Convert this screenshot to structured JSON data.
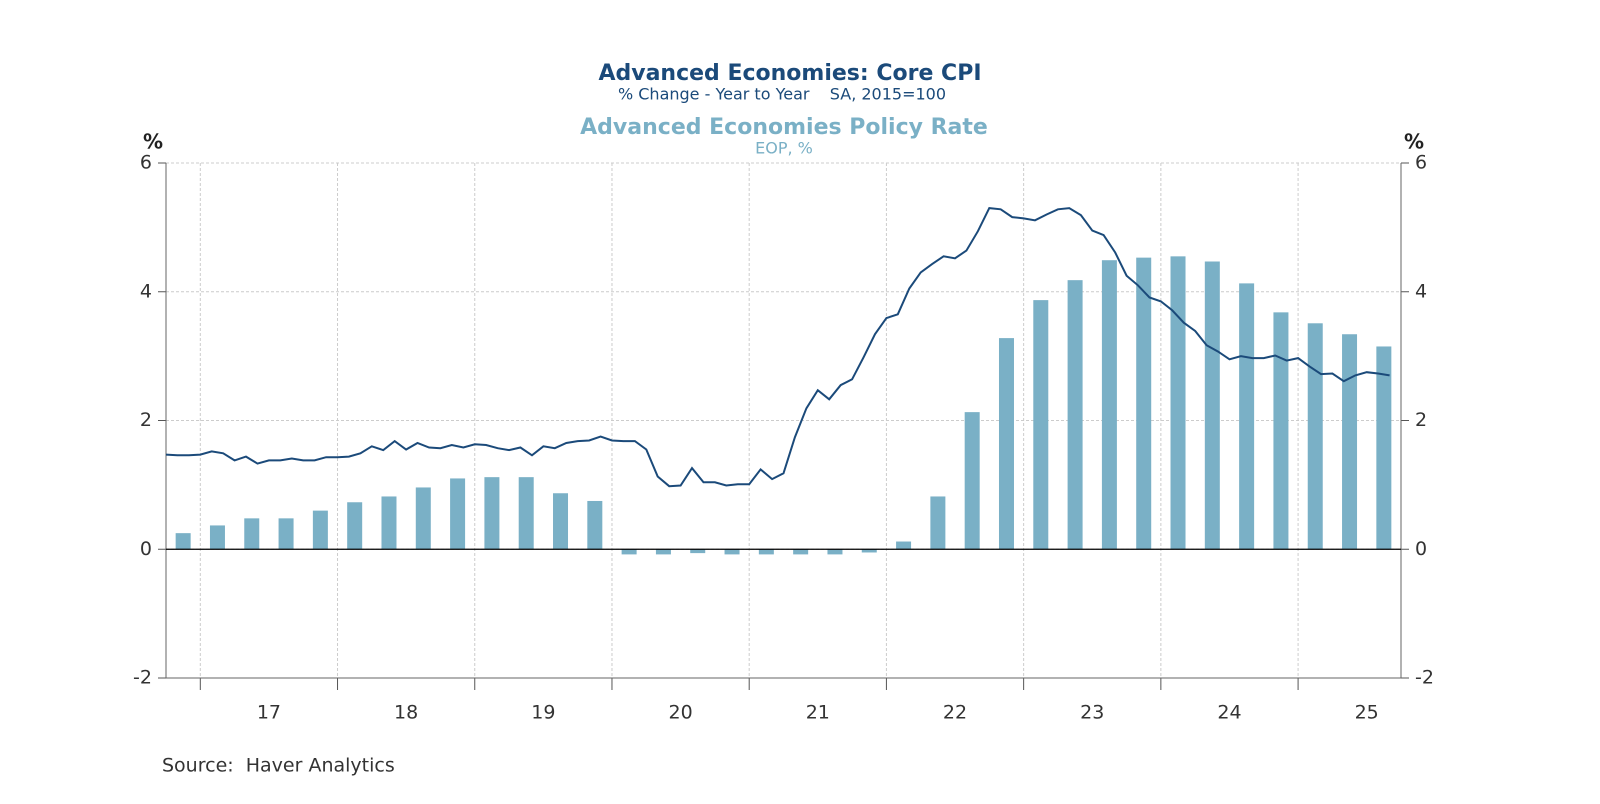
{
  "chart_data": {
    "type": "combo",
    "series": [
      {
        "name": "Advanced Economies: Core CPI",
        "subtitle": "% Change - Year to Year    SA, 2015=100",
        "type": "line",
        "color": "#1b4a7a",
        "x": [
          2016.75,
          2016.833,
          2016.917,
          2017,
          2017.083,
          2017.167,
          2017.25,
          2017.333,
          2017.417,
          2017.5,
          2017.583,
          2017.667,
          2017.75,
          2017.833,
          2017.917,
          2018,
          2018.083,
          2018.167,
          2018.25,
          2018.333,
          2018.417,
          2018.5,
          2018.583,
          2018.667,
          2018.75,
          2018.833,
          2018.917,
          2019,
          2019.083,
          2019.167,
          2019.25,
          2019.333,
          2019.417,
          2019.5,
          2019.583,
          2019.667,
          2019.75,
          2019.833,
          2019.917,
          2020,
          2020.083,
          2020.167,
          2020.25,
          2020.333,
          2020.417,
          2020.5,
          2020.583,
          2020.667,
          2020.75,
          2020.833,
          2020.917,
          2021,
          2021.083,
          2021.167,
          2021.25,
          2021.333,
          2021.417,
          2021.5,
          2021.583,
          2021.667,
          2021.75,
          2021.833,
          2021.917,
          2022,
          2022.083,
          2022.167,
          2022.25,
          2022.333,
          2022.417,
          2022.5,
          2022.583,
          2022.667,
          2022.75,
          2022.833,
          2022.917,
          2023,
          2023.083,
          2023.167,
          2023.25,
          2023.333,
          2023.417,
          2023.5,
          2023.583,
          2023.667,
          2023.75,
          2023.833,
          2023.917,
          2024,
          2024.083,
          2024.167,
          2024.25,
          2024.333,
          2024.417,
          2024.5,
          2024.583,
          2024.667,
          2024.75,
          2024.833,
          2024.917,
          2025,
          2025.083,
          2025.167,
          2025.25,
          2025.333,
          2025.417,
          2025.5,
          2025.583,
          2025.667
        ],
        "values": [
          1.47,
          1.46,
          1.46,
          1.47,
          1.52,
          1.49,
          1.38,
          1.44,
          1.33,
          1.38,
          1.38,
          1.41,
          1.38,
          1.38,
          1.43,
          1.43,
          1.44,
          1.49,
          1.6,
          1.54,
          1.68,
          1.55,
          1.65,
          1.58,
          1.57,
          1.62,
          1.58,
          1.63,
          1.62,
          1.57,
          1.54,
          1.58,
          1.46,
          1.6,
          1.57,
          1.65,
          1.68,
          1.69,
          1.75,
          1.69,
          1.68,
          1.68,
          1.55,
          1.13,
          0.98,
          0.99,
          1.26,
          1.04,
          1.04,
          0.99,
          1.01,
          1.01,
          1.24,
          1.09,
          1.18,
          1.74,
          2.19,
          2.47,
          2.33,
          2.55,
          2.64,
          2.98,
          3.34,
          3.59,
          3.65,
          4.05,
          4.3,
          4.43,
          4.55,
          4.52,
          4.64,
          4.94,
          5.3,
          5.28,
          5.16,
          5.14,
          5.11,
          5.2,
          5.28,
          5.3,
          5.19,
          4.95,
          4.88,
          4.61,
          4.25,
          4.1,
          3.91,
          3.85,
          3.71,
          3.52,
          3.39,
          3.17,
          3.07,
          2.95,
          3.0,
          2.97,
          2.97,
          3.01,
          2.93,
          2.97,
          2.84,
          2.72,
          2.73,
          2.61,
          2.7,
          2.75,
          2.73,
          2.7
        ]
      },
      {
        "name": "Advanced Economies Policy Rate",
        "subtitle": "EOP, %",
        "type": "bar",
        "color": "#7ab0c6",
        "axis": "y2",
        "x": [
          2016.875,
          2017.125,
          2017.375,
          2017.625,
          2017.875,
          2018.125,
          2018.375,
          2018.625,
          2018.875,
          2019.125,
          2019.375,
          2019.625,
          2019.875,
          2020.125,
          2020.375,
          2020.625,
          2020.875,
          2021.125,
          2021.375,
          2021.625,
          2021.875,
          2022.125,
          2022.375,
          2022.625,
          2022.875,
          2023.125,
          2023.375,
          2023.625,
          2023.875,
          2024.125,
          2024.375,
          2024.625,
          2024.875,
          2025.125,
          2025.375,
          2025.625
        ],
        "values": [
          0.25,
          0.37,
          0.48,
          0.48,
          0.6,
          0.73,
          0.82,
          0.96,
          1.1,
          1.12,
          1.12,
          0.87,
          0.75,
          -0.08,
          -0.08,
          -0.06,
          -0.08,
          -0.08,
          -0.08,
          -0.08,
          -0.05,
          0.12,
          0.82,
          2.13,
          3.28,
          3.87,
          4.18,
          4.49,
          4.53,
          4.55,
          4.47,
          4.13,
          3.68,
          3.51,
          3.34,
          3.15
        ]
      }
    ],
    "y_label": "%",
    "y2_label": "%",
    "xlim": [
      2016.75,
      2025.75
    ],
    "xticks": [
      2017,
      2018,
      2019,
      2020,
      2021,
      2022,
      2023,
      2024,
      2025
    ],
    "x_labels": [
      {
        "value": 2017.5,
        "label": "17"
      },
      {
        "value": 2018.5,
        "label": "18"
      },
      {
        "value": 2019.5,
        "label": "19"
      },
      {
        "value": 2020.5,
        "label": "20"
      },
      {
        "value": 2021.5,
        "label": "21"
      },
      {
        "value": 2022.5,
        "label": "22"
      },
      {
        "value": 2023.5,
        "label": "23"
      },
      {
        "value": 2024.5,
        "label": "24"
      },
      {
        "value": 2025.5,
        "label": "25"
      }
    ],
    "ylim": [
      -2,
      6
    ],
    "yticks": [
      -2,
      0,
      2,
      4,
      6
    ],
    "y2lim": [
      -2,
      6
    ],
    "y2ticks": [
      -2,
      0,
      2,
      4,
      6
    ],
    "grid": true,
    "source": "Source:  Haver Analytics"
  }
}
